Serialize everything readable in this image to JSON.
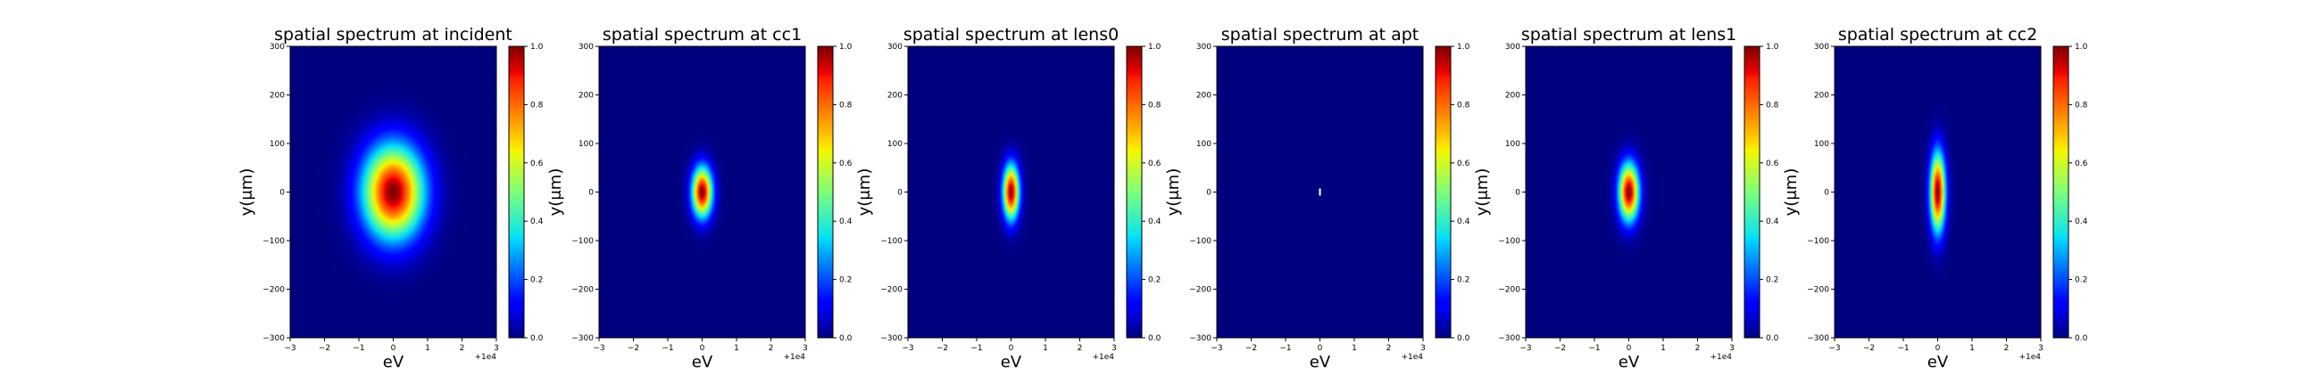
{
  "chart_data": [
    {
      "type": "heatmap",
      "title": "spatial spectrum at incident",
      "xlabel": "eV",
      "ylabel": "y(μm)",
      "x_offset_label": "+1e4",
      "xlim": [
        -3,
        3
      ],
      "ylim": [
        -300,
        300
      ],
      "x_ticks": [
        -3,
        -2,
        -1,
        0,
        1,
        2,
        3
      ],
      "y_ticks": [
        300,
        200,
        100,
        0,
        -100,
        -200,
        -300
      ],
      "x_tick_labels": [
        "−3",
        "−2",
        "−1",
        "0",
        "1",
        "2",
        "3"
      ],
      "y_tick_labels": [
        "300",
        "200",
        "100",
        "0",
        "−100",
        "−200",
        "−300"
      ],
      "colorbar": {
        "range": [
          0,
          1
        ],
        "ticks": [
          "1.0",
          "0.8",
          "0.6",
          "0.4",
          "0.2",
          "0.0"
        ]
      },
      "peak": {
        "x": 0,
        "y": 0,
        "value": 1.0
      },
      "sigma_x": 0.6,
      "sigma_y": 65
    },
    {
      "type": "heatmap",
      "title": "spatial spectrum at cc1",
      "xlabel": "eV",
      "ylabel": "y(μm)",
      "x_offset_label": "+1e4",
      "xlim": [
        -3,
        3
      ],
      "ylim": [
        -300,
        300
      ],
      "x_ticks": [
        -3,
        -2,
        -1,
        0,
        1,
        2,
        3
      ],
      "y_ticks": [
        300,
        200,
        100,
        0,
        -100,
        -200,
        -300
      ],
      "x_tick_labels": [
        "−3",
        "−2",
        "−1",
        "0",
        "1",
        "2",
        "3"
      ],
      "y_tick_labels": [
        "300",
        "200",
        "100",
        "0",
        "−100",
        "−200",
        "−300"
      ],
      "colorbar": {
        "range": [
          0,
          1
        ],
        "ticks": [
          "1.0",
          "0.8",
          "0.6",
          "0.4",
          "0.2",
          "0.0"
        ]
      },
      "peak": {
        "x": 0,
        "y": 0,
        "value": 1.0
      },
      "sigma_x": 0.2,
      "sigma_y": 35
    },
    {
      "type": "heatmap",
      "title": "spatial spectrum at lens0",
      "xlabel": "eV",
      "ylabel": "y(μm)",
      "x_offset_label": "+1e4",
      "xlim": [
        -3,
        3
      ],
      "ylim": [
        -300,
        300
      ],
      "x_ticks": [
        -3,
        -2,
        -1,
        0,
        1,
        2,
        3
      ],
      "y_ticks": [
        300,
        200,
        100,
        0,
        -100,
        -200,
        -300
      ],
      "x_tick_labels": [
        "−3",
        "−2",
        "−1",
        "0",
        "1",
        "2",
        "3"
      ],
      "y_tick_labels": [
        "300",
        "200",
        "100",
        "0",
        "−100",
        "−200",
        "−300"
      ],
      "colorbar": {
        "range": [
          0,
          1
        ],
        "ticks": [
          "1.0",
          "0.8",
          "0.6",
          "0.4",
          "0.2",
          "0.0"
        ]
      },
      "peak": {
        "x": 0,
        "y": 0,
        "value": 1.0
      },
      "sigma_x": 0.16,
      "sigma_y": 38
    },
    {
      "type": "heatmap",
      "title": "spatial spectrum at apt",
      "xlabel": "eV",
      "ylabel": "y(μm)",
      "x_offset_label": "+1e4",
      "xlim": [
        -3,
        3
      ],
      "ylim": [
        -300,
        300
      ],
      "x_ticks": [
        -3,
        -2,
        -1,
        0,
        1,
        2,
        3
      ],
      "y_ticks": [
        300,
        200,
        100,
        0,
        -100,
        -200,
        -300
      ],
      "x_tick_labels": [
        "−3",
        "−2",
        "−1",
        "0",
        "1",
        "2",
        "3"
      ],
      "y_tick_labels": [
        "300",
        "200",
        "100",
        "0",
        "−100",
        "−200",
        "−300"
      ],
      "colorbar": {
        "range": [
          0,
          1
        ],
        "ticks": [
          "1.0",
          "0.8",
          "0.6",
          "0.4",
          "0.2",
          "0.0"
        ]
      },
      "peak": {
        "x": 0,
        "y": 0,
        "value": 1.0
      },
      "sigma_x": 0.01,
      "sigma_y": 4
    },
    {
      "type": "heatmap",
      "title": "spatial spectrum at lens1",
      "xlabel": "eV",
      "ylabel": "y(μm)",
      "x_offset_label": "+1e4",
      "xlim": [
        -3,
        3
      ],
      "ylim": [
        -300,
        300
      ],
      "x_ticks": [
        -3,
        -2,
        -1,
        0,
        1,
        2,
        3
      ],
      "y_ticks": [
        300,
        200,
        100,
        0,
        -100,
        -200,
        -300
      ],
      "x_tick_labels": [
        "−3",
        "−2",
        "−1",
        "0",
        "1",
        "2",
        "3"
      ],
      "y_tick_labels": [
        "300",
        "200",
        "100",
        "0",
        "−100",
        "−200",
        "−300"
      ],
      "colorbar": {
        "range": [
          0,
          1
        ],
        "ticks": [
          "1.0",
          "0.8",
          "0.6",
          "0.4",
          "0.2",
          "0.0"
        ]
      },
      "peak": {
        "x": 0,
        "y": 0,
        "value": 1.0
      },
      "sigma_x": 0.2,
      "sigma_y": 40
    },
    {
      "type": "heatmap",
      "title": "spatial spectrum at cc2",
      "xlabel": "eV",
      "ylabel": "y(μm)",
      "x_offset_label": "+1e4",
      "xlim": [
        -3,
        3
      ],
      "ylim": [
        -300,
        300
      ],
      "x_ticks": [
        -3,
        -2,
        -1,
        0,
        1,
        2,
        3
      ],
      "y_ticks": [
        300,
        200,
        100,
        0,
        -100,
        -200,
        -300
      ],
      "x_tick_labels": [
        "−3",
        "−2",
        "−1",
        "0",
        "1",
        "2",
        "3"
      ],
      "y_tick_labels": [
        "300",
        "200",
        "100",
        "0",
        "−100",
        "−200",
        "−300"
      ],
      "colorbar": {
        "range": [
          0,
          1
        ],
        "ticks": [
          "1.0",
          "0.8",
          "0.6",
          "0.4",
          "0.2",
          "0.0"
        ]
      },
      "peak": {
        "x": 0,
        "y": 0,
        "value": 1.0
      },
      "sigma_x": 0.15,
      "sigma_y": 55
    }
  ],
  "colormap": {
    "name": "jet",
    "stops": [
      [
        0.0,
        "#00007f"
      ],
      [
        0.11,
        "#0000ff"
      ],
      [
        0.125,
        "#0000ff"
      ],
      [
        0.34,
        "#00dbff"
      ],
      [
        0.35,
        "#0ae4ee"
      ],
      [
        0.5,
        "#7dff7a"
      ],
      [
        0.64,
        "#f4f802"
      ],
      [
        0.66,
        "#ffe200"
      ],
      [
        0.89,
        "#ff1d00"
      ],
      [
        0.91,
        "#ed0000"
      ],
      [
        1.0,
        "#7f0000"
      ]
    ]
  }
}
